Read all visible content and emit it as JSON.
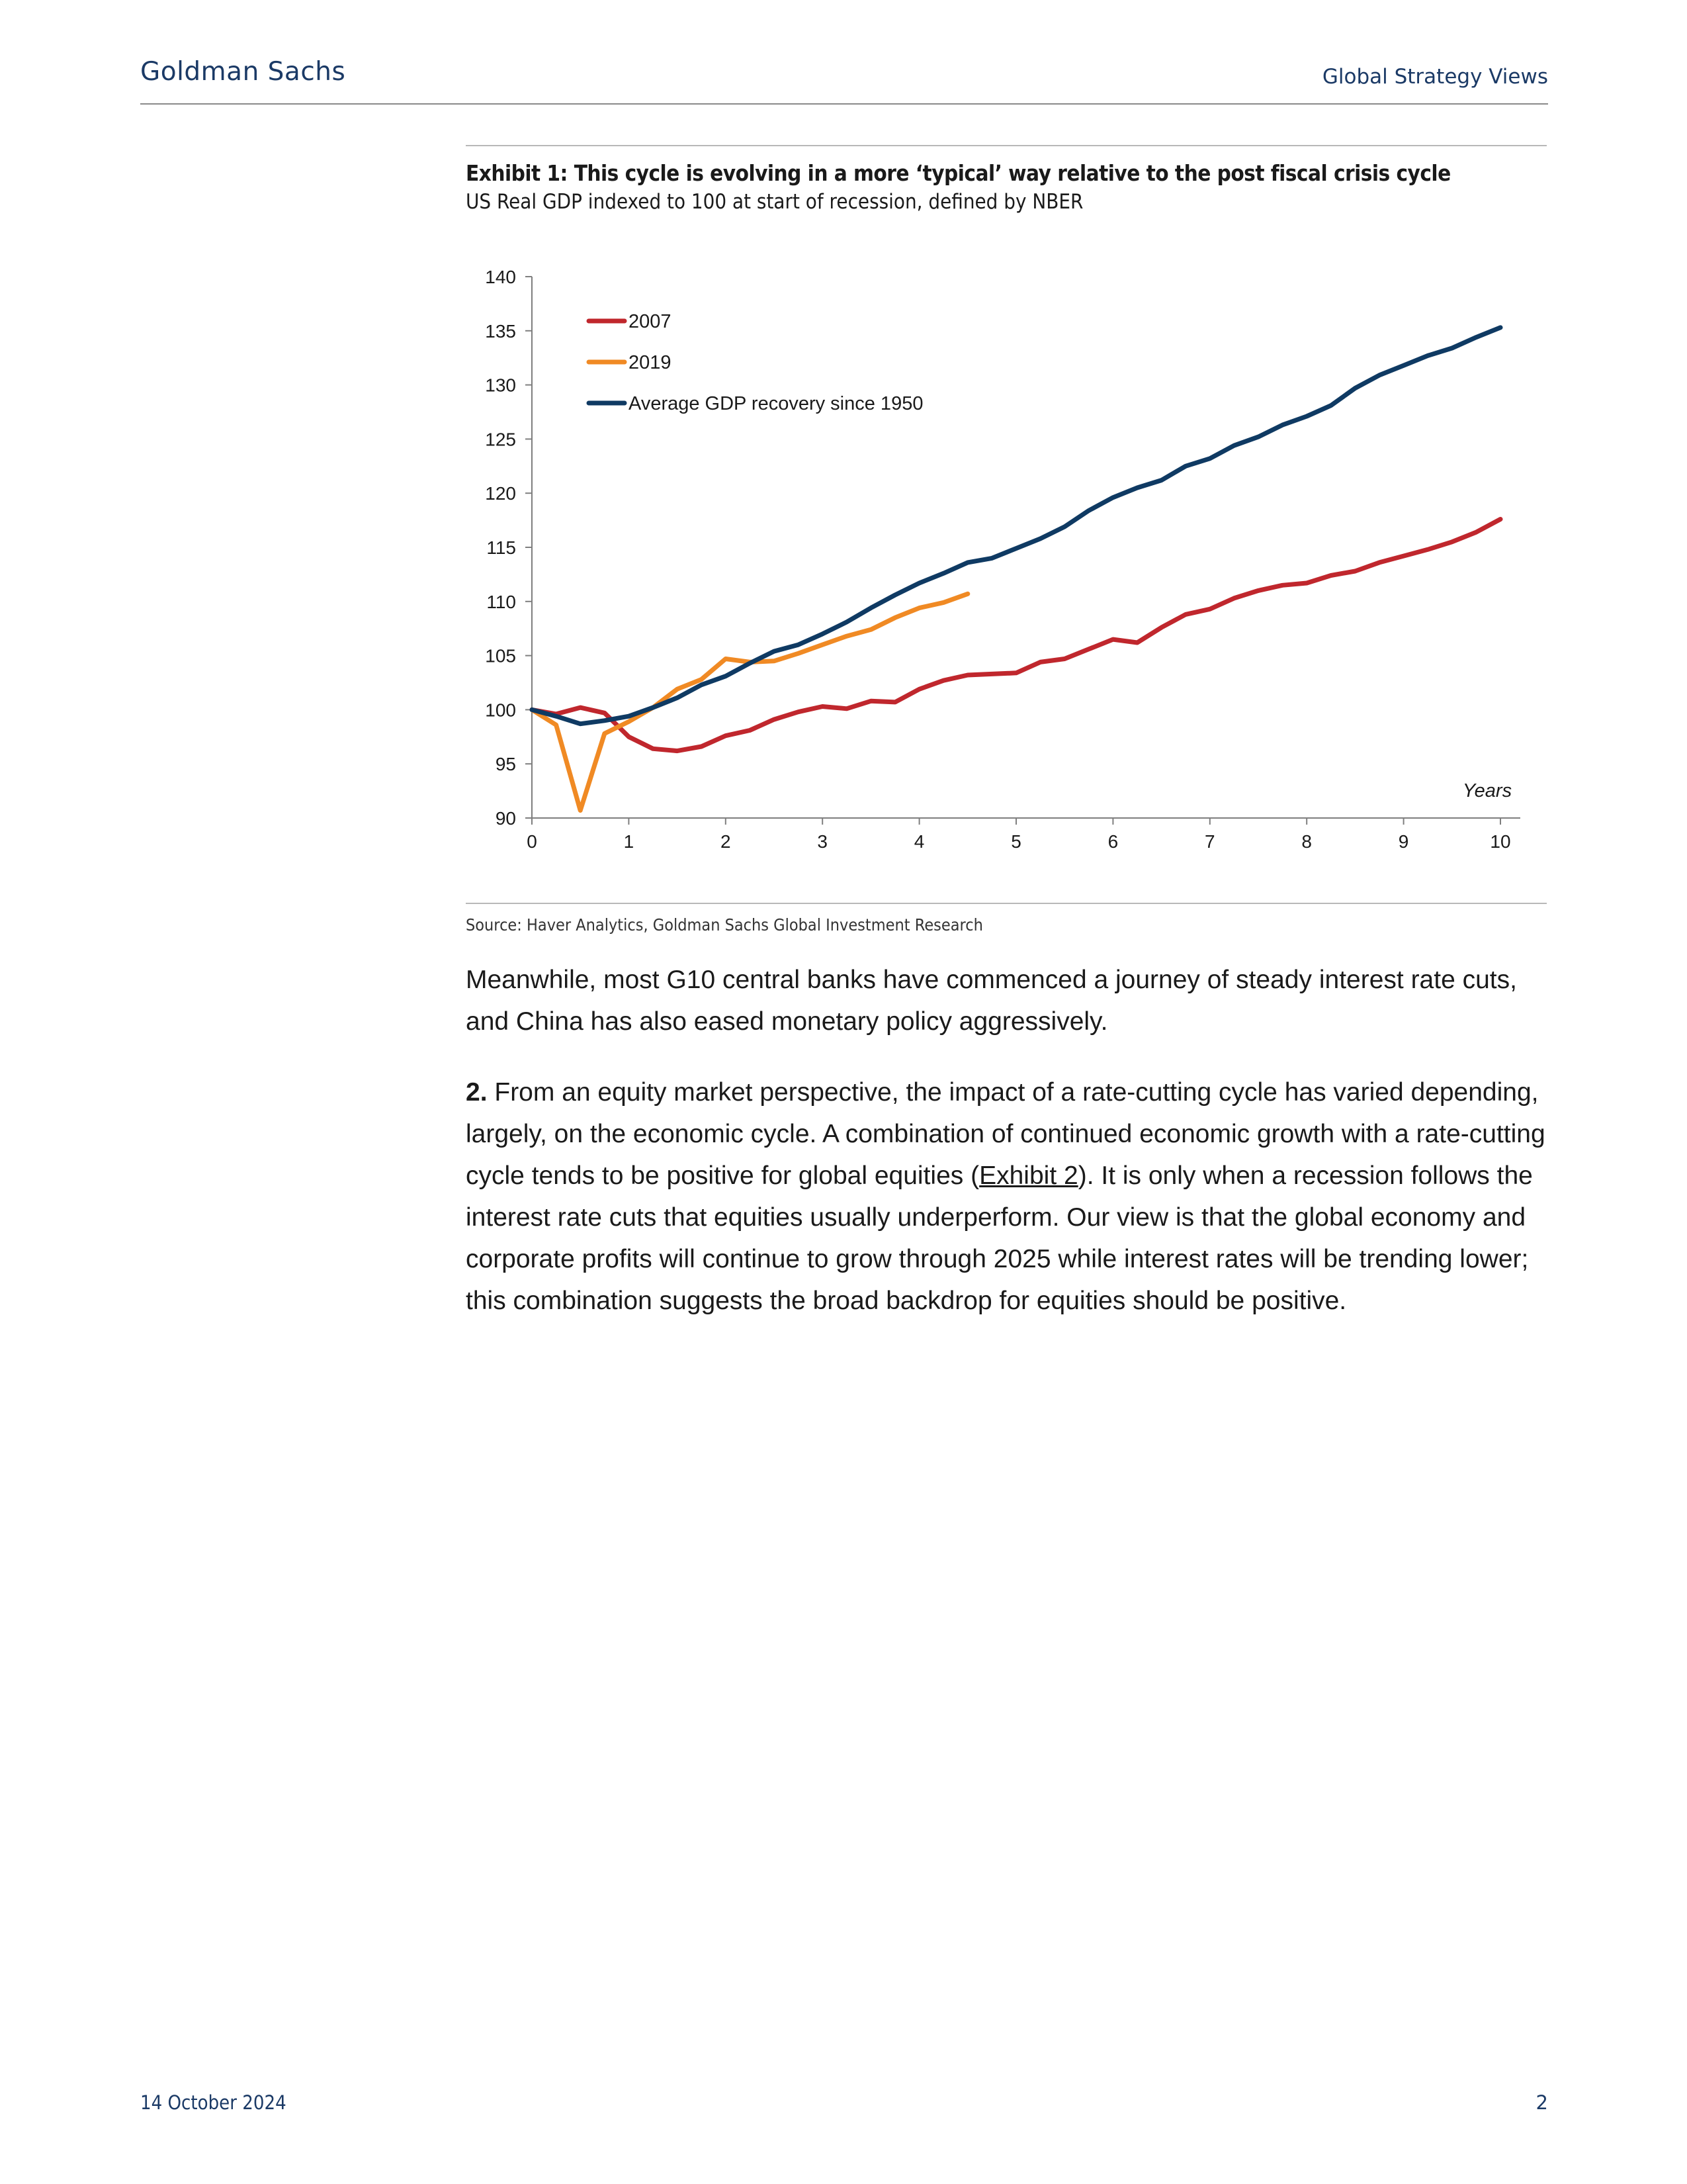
{
  "header": {
    "brand": "Goldman Sachs",
    "publication": "Global Strategy Views"
  },
  "exhibit": {
    "title": "Exhibit 1: This cycle is evolving in a more ‘typical’ way relative to the post fiscal crisis cycle",
    "subtitle": "US Real GDP indexed to 100 at start of recession, defined by NBER",
    "source": "Source: Haver Analytics, Goldman Sachs Global Investment Research"
  },
  "chart_data": {
    "type": "line",
    "title": "",
    "xlabel": "Years",
    "ylabel": "",
    "xlim": [
      0,
      10
    ],
    "ylim": [
      90,
      140
    ],
    "x_ticks": [
      0,
      1,
      2,
      3,
      4,
      5,
      6,
      7,
      8,
      9,
      10
    ],
    "y_ticks": [
      90,
      95,
      100,
      105,
      110,
      115,
      120,
      125,
      130,
      135,
      140
    ],
    "grid": false,
    "legend_position": "top-left",
    "colors": {
      "2007": "#c0272d",
      "2019": "#f08a24",
      "Average GDP recovery since 1950": "#0f3a63"
    },
    "series": [
      {
        "name": "2007",
        "x": [
          0,
          0.25,
          0.5,
          0.75,
          1,
          1.25,
          1.5,
          1.75,
          2,
          2.25,
          2.5,
          2.75,
          3,
          3.25,
          3.5,
          3.75,
          4,
          4.25,
          4.5,
          4.75,
          5,
          5.25,
          5.5,
          5.75,
          6,
          6.25,
          6.5,
          6.75,
          7,
          7.25,
          7.5,
          7.75,
          8,
          8.25,
          8.5,
          8.75,
          9,
          9.25,
          9.5,
          9.75,
          10
        ],
        "y": [
          100,
          99.6,
          100.2,
          99.7,
          97.5,
          96.4,
          96.2,
          96.6,
          97.6,
          98.1,
          99.1,
          99.8,
          100.3,
          100.1,
          100.8,
          100.7,
          101.9,
          102.7,
          103.2,
          103.3,
          103.4,
          104.4,
          104.7,
          105.6,
          106.5,
          106.2,
          107.6,
          108.8,
          109.3,
          110.3,
          111.0,
          111.5,
          111.7,
          112.4,
          112.8,
          113.6,
          114.2,
          114.8,
          115.5,
          116.4,
          117.6
        ]
      },
      {
        "name": "2019",
        "x": [
          0,
          0.25,
          0.5,
          0.75,
          1,
          1.25,
          1.5,
          1.75,
          2,
          2.25,
          2.5,
          2.75,
          3,
          3.25,
          3.5,
          3.75,
          4,
          4.25,
          4.5
        ],
        "y": [
          100,
          98.6,
          90.7,
          97.8,
          98.9,
          100.2,
          101.9,
          102.8,
          104.7,
          104.4,
          104.5,
          105.2,
          106.0,
          106.8,
          107.4,
          108.5,
          109.4,
          109.9,
          110.7
        ]
      },
      {
        "name": "Average GDP recovery since 1950",
        "x": [
          0,
          0.25,
          0.5,
          0.75,
          1,
          1.25,
          1.5,
          1.75,
          2,
          2.25,
          2.5,
          2.75,
          3,
          3.25,
          3.5,
          3.75,
          4,
          4.25,
          4.5,
          4.75,
          5,
          5.25,
          5.5,
          5.75,
          6,
          6.25,
          6.5,
          6.75,
          7,
          7.25,
          7.5,
          7.75,
          8,
          8.25,
          8.5,
          8.75,
          9,
          9.25,
          9.5,
          9.75,
          10
        ],
        "y": [
          100,
          99.4,
          98.7,
          99.0,
          99.4,
          100.2,
          101.1,
          102.3,
          103.1,
          104.3,
          105.4,
          106.0,
          107.0,
          108.1,
          109.4,
          110.6,
          111.7,
          112.6,
          113.6,
          114.0,
          114.9,
          115.8,
          116.9,
          118.4,
          119.6,
          120.5,
          121.2,
          122.5,
          123.2,
          124.4,
          125.2,
          126.3,
          127.1,
          128.1,
          129.7,
          130.9,
          131.8,
          132.7,
          133.4,
          134.4,
          135.3
        ]
      }
    ]
  },
  "body": {
    "p1": "Meanwhile, most G10 central banks have commenced a journey of steady interest rate cuts, and China has also eased monetary policy aggressively.",
    "p2_num": "2.",
    "p2_a": " From an equity market perspective, the impact of a rate-cutting cycle has varied depending, largely, on the economic cycle. A combination of continued economic growth with a rate-cutting cycle tends to be positive for global equities (",
    "p2_link": "Exhibit 2",
    "p2_b": "). It is only when a recession follows the interest rate cuts that equities usually underperform. Our view is that the global economy and corporate profits will continue to grow through 2025 while interest rates will be trending lower; this combination suggests the broad backdrop for equities should be positive."
  },
  "footer": {
    "date": "14 October 2024",
    "page": "2"
  }
}
